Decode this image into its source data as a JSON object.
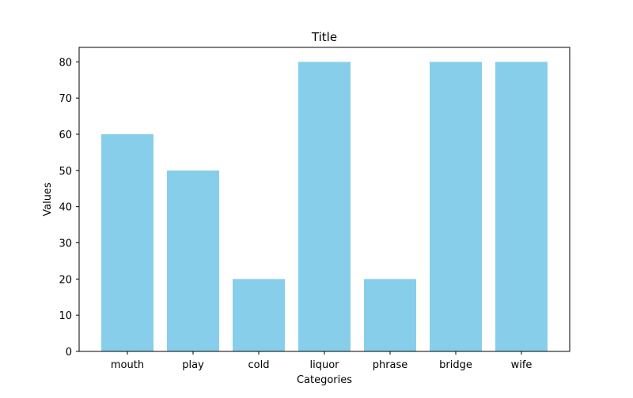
{
  "chart_data": {
    "type": "bar",
    "title": "Title",
    "xlabel": "Categories",
    "ylabel": "Values",
    "categories": [
      "mouth",
      "play",
      "cold",
      "liquor",
      "phrase",
      "bridge",
      "wife"
    ],
    "values": [
      60,
      50,
      20,
      80,
      20,
      80,
      80
    ],
    "ylim": [
      0,
      84
    ],
    "yticks": [
      0,
      10,
      20,
      30,
      40,
      50,
      60,
      70,
      80
    ],
    "grid": false,
    "legend": "none",
    "bar_color": "#87CEEB"
  }
}
